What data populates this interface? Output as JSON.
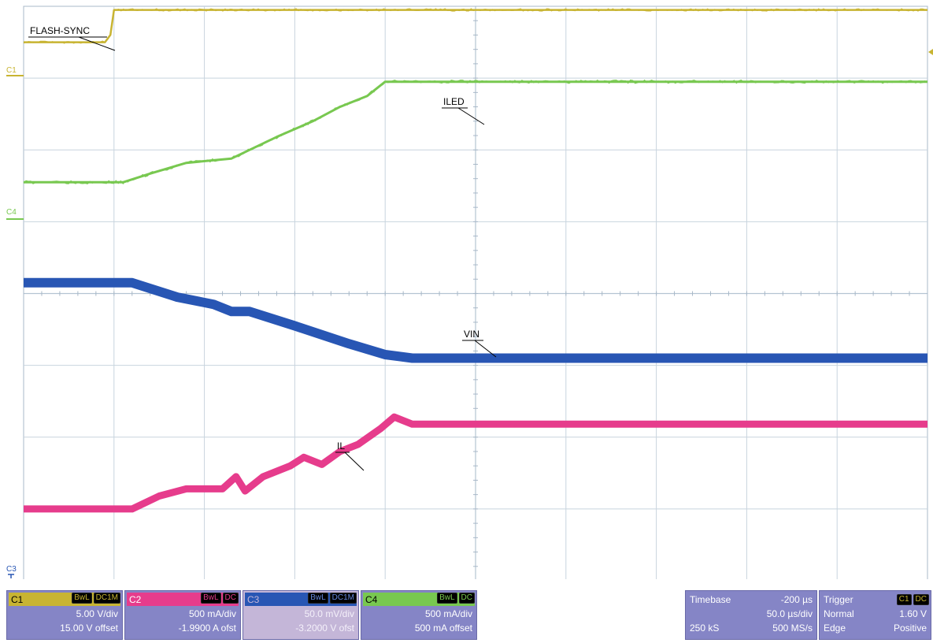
{
  "chart_data": {
    "type": "line",
    "title": "",
    "grid": true,
    "x_divisions": 10,
    "y_divisions": 8,
    "x_unit": "div",
    "y_unit": "div",
    "xlim": [
      0,
      10
    ],
    "ylim": [
      -4,
      4
    ],
    "series": [
      {
        "name": "FLASH-SYNC",
        "channel": "C1",
        "color": "#c8b432",
        "x": [
          0,
          0.9,
          0.96,
          1.0,
          10
        ],
        "y": [
          3.5,
          3.5,
          3.6,
          3.95,
          3.95
        ]
      },
      {
        "name": "ILED",
        "channel": "C4",
        "color": "#78c850",
        "x": [
          0,
          1.1,
          1.4,
          1.8,
          2.3,
          2.8,
          3.2,
          3.5,
          3.8,
          4.0,
          10
        ],
        "y": [
          1.55,
          1.55,
          1.67,
          1.82,
          1.88,
          2.18,
          2.4,
          2.6,
          2.75,
          2.95,
          2.95
        ]
      },
      {
        "name": "VIN",
        "channel": "C3",
        "color": "#2856b4",
        "x": [
          0,
          1.2,
          1.7,
          2.1,
          2.3,
          2.5,
          3.0,
          3.6,
          4.0,
          4.3,
          10
        ],
        "y": [
          0.15,
          0.15,
          -0.05,
          -0.15,
          -0.25,
          -0.25,
          -0.45,
          -0.7,
          -0.85,
          -0.9,
          -0.9
        ]
      },
      {
        "name": "IL",
        "channel": "C2",
        "color": "#e63c8c",
        "x": [
          0,
          1.2,
          1.5,
          1.8,
          2.2,
          2.35,
          2.45,
          2.65,
          2.95,
          3.1,
          3.3,
          3.5,
          3.7,
          3.95,
          4.1,
          4.3,
          10
        ],
        "y": [
          -3.0,
          -3.0,
          -2.82,
          -2.72,
          -2.72,
          -2.55,
          -2.75,
          -2.55,
          -2.4,
          -2.28,
          -2.38,
          -2.2,
          -2.1,
          -1.88,
          -1.72,
          -1.82,
          -1.82
        ]
      }
    ]
  },
  "trace_labels": {
    "flash_sync": "FLASH-SYNC",
    "iled": "ILED",
    "vin": "VIN",
    "il": "IL"
  },
  "channel_markers": {
    "c1": "C1",
    "c4": "C4",
    "c3": "C3"
  },
  "panels": {
    "c1": {
      "label": "C1",
      "tags": [
        "BwL",
        "DC1M"
      ],
      "scale": "5.00 V/div",
      "offset": "15.00 V offset",
      "color": "#c8b432"
    },
    "c2": {
      "label": "C2",
      "tags": [
        "BwL",
        "DC"
      ],
      "scale": "500 mA/div",
      "offset": "-1.9900 A ofst",
      "color": "#e63c8c"
    },
    "c3": {
      "label": "C3",
      "tags": [
        "BwL",
        "DC1M"
      ],
      "scale": "50.0 mV/div",
      "offset": "-3.2000 V ofst",
      "color": "#2856b4"
    },
    "c4": {
      "label": "C4",
      "tags": [
        "BwL",
        "DC"
      ],
      "scale": "500 mA/div",
      "offset": "500 mA offset",
      "color": "#78c850"
    },
    "timebase": {
      "label": "Timebase",
      "delay": "-200 µs",
      "scale": "50.0 µs/div",
      "samples": "250 kS",
      "rate": "500 MS/s"
    },
    "trigger": {
      "label": "Trigger",
      "tags": [
        "C1",
        "DC"
      ],
      "mode": "Normal",
      "level": "1.60 V",
      "type": "Edge",
      "slope": "Positive"
    }
  }
}
